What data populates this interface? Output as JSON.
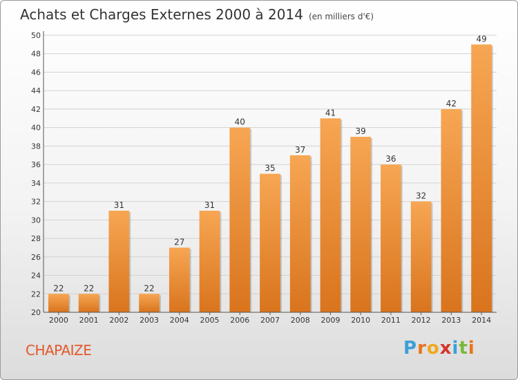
{
  "title": "Achats et Charges Externes 2000 à 2014",
  "subtitle": "(en milliers d'€)",
  "place": "CHAPAIZE",
  "logo": {
    "letters": [
      "P",
      "r",
      "o",
      "x",
      "i",
      "t",
      "i"
    ],
    "colors": [
      "#3aa0d8",
      "#e8731c",
      "#f2a81d",
      "#d6342a",
      "#3aa0d8",
      "#7ab83d",
      "#e8731c"
    ]
  },
  "colors": {
    "bar_light": "#f7a653",
    "bar_dark": "#d9741d",
    "place": "#e2582a"
  },
  "chart_data": {
    "type": "bar",
    "categories": [
      "2000",
      "2001",
      "2002",
      "2003",
      "2004",
      "2005",
      "2006",
      "2007",
      "2008",
      "2009",
      "2010",
      "2011",
      "2012",
      "2013",
      "2014"
    ],
    "values": [
      22,
      22,
      31,
      22,
      27,
      31,
      40,
      35,
      37,
      41,
      39,
      36,
      32,
      42,
      49
    ],
    "ylim": [
      20,
      50
    ],
    "yticks": [
      20,
      22,
      24,
      26,
      28,
      30,
      32,
      34,
      36,
      38,
      40,
      42,
      44,
      46,
      48,
      50
    ],
    "grid": true
  }
}
